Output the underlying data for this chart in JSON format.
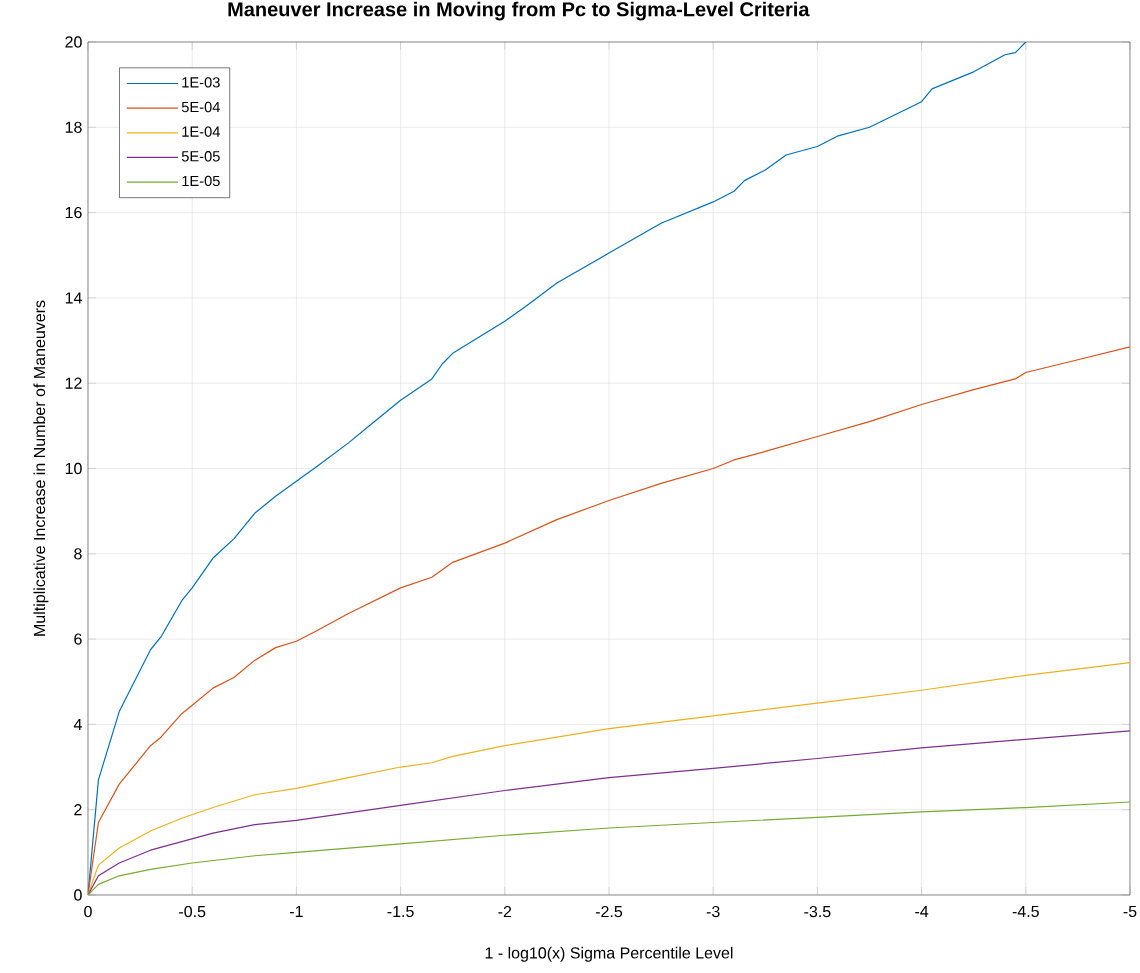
{
  "chart_data": {
    "type": "line",
    "title": "Maneuver Increase in Moving from Pc to Sigma-Level Criteria",
    "xlabel": "1 - log10(x) Sigma Percentile Level",
    "ylabel": "Multiplicative Increase in Number of Maneuvers",
    "xlim": [
      0,
      -5
    ],
    "ylim": [
      0,
      20
    ],
    "xticks": [
      0,
      -0.5,
      -1,
      -1.5,
      -2,
      -2.5,
      -3,
      -3.5,
      -4,
      -4.5,
      -5
    ],
    "yticks": [
      0,
      2,
      4,
      6,
      8,
      10,
      12,
      14,
      16,
      18,
      20
    ],
    "grid": true,
    "legend": "top left",
    "line_style": "solid",
    "marker": "none",
    "series": [
      {
        "name": "1E-03",
        "color": "#0072bd",
        "x": [
          0,
          -0.05,
          -0.15,
          -0.3,
          -0.35,
          -0.45,
          -0.5,
          -0.6,
          -0.7,
          -0.8,
          -0.9,
          -1,
          -1.1,
          -1.25,
          -1.35,
          -1.5,
          -1.65,
          -1.7,
          -1.75,
          -2,
          -2.1,
          -2.25,
          -2.5,
          -2.75,
          -3,
          -3.1,
          -3.15,
          -3.25,
          -3.35,
          -3.5,
          -3.6,
          -3.75,
          -4,
          -4.05,
          -4.25,
          -4.4,
          -4.45,
          -4.5
        ],
        "values": [
          0,
          2.7,
          4.3,
          5.75,
          6.05,
          6.9,
          7.2,
          7.9,
          8.35,
          8.95,
          9.35,
          9.7,
          10.05,
          10.6,
          11.0,
          11.6,
          12.1,
          12.45,
          12.7,
          13.45,
          13.8,
          14.35,
          15.05,
          15.75,
          16.25,
          16.5,
          16.75,
          17.0,
          17.35,
          17.55,
          17.8,
          18.0,
          18.6,
          18.9,
          19.3,
          19.7,
          19.75,
          20
        ]
      },
      {
        "name": "5E-04",
        "color": "#d95319",
        "x": [
          0,
          -0.05,
          -0.15,
          -0.3,
          -0.35,
          -0.45,
          -0.5,
          -0.6,
          -0.7,
          -0.8,
          -0.9,
          -1,
          -1.1,
          -1.25,
          -1.5,
          -1.65,
          -1.75,
          -2,
          -2.25,
          -2.5,
          -2.75,
          -3,
          -3.1,
          -3.25,
          -3.5,
          -3.75,
          -4,
          -4.25,
          -4.45,
          -4.5,
          -4.75,
          -5
        ],
        "values": [
          0,
          1.7,
          2.6,
          3.5,
          3.7,
          4.25,
          4.45,
          4.85,
          5.1,
          5.5,
          5.8,
          5.95,
          6.2,
          6.6,
          7.2,
          7.45,
          7.8,
          8.25,
          8.8,
          9.25,
          9.65,
          10.0,
          10.2,
          10.4,
          10.75,
          11.1,
          11.5,
          11.85,
          12.1,
          12.25,
          12.55,
          12.85
        ]
      },
      {
        "name": "1E-04",
        "color": "#edb120",
        "x": [
          0,
          -0.05,
          -0.15,
          -0.3,
          -0.45,
          -0.6,
          -0.8,
          -1,
          -1.25,
          -1.5,
          -1.65,
          -1.75,
          -2,
          -2.5,
          -3,
          -3.5,
          -4,
          -4.5,
          -5
        ],
        "values": [
          0,
          0.7,
          1.1,
          1.5,
          1.8,
          2.05,
          2.35,
          2.5,
          2.75,
          3.0,
          3.1,
          3.25,
          3.5,
          3.9,
          4.2,
          4.5,
          4.8,
          5.15,
          5.45
        ]
      },
      {
        "name": "5E-05",
        "color": "#7e2f8e",
        "x": [
          0,
          -0.05,
          -0.15,
          -0.3,
          -0.45,
          -0.6,
          -0.8,
          -1,
          -1.5,
          -2,
          -2.5,
          -3,
          -3.5,
          -4,
          -4.5,
          -5
        ],
        "values": [
          0,
          0.45,
          0.75,
          1.05,
          1.25,
          1.45,
          1.65,
          1.75,
          2.1,
          2.45,
          2.75,
          2.97,
          3.2,
          3.45,
          3.65,
          3.85
        ]
      },
      {
        "name": "1E-05",
        "color": "#77ac30",
        "x": [
          0,
          -0.05,
          -0.15,
          -0.3,
          -0.5,
          -0.8,
          -1,
          -1.5,
          -2,
          -2.5,
          -3,
          -3.5,
          -4,
          -4.5,
          -5
        ],
        "values": [
          0,
          0.25,
          0.45,
          0.6,
          0.75,
          0.92,
          1.0,
          1.2,
          1.4,
          1.57,
          1.7,
          1.82,
          1.95,
          2.05,
          2.18
        ]
      }
    ]
  }
}
